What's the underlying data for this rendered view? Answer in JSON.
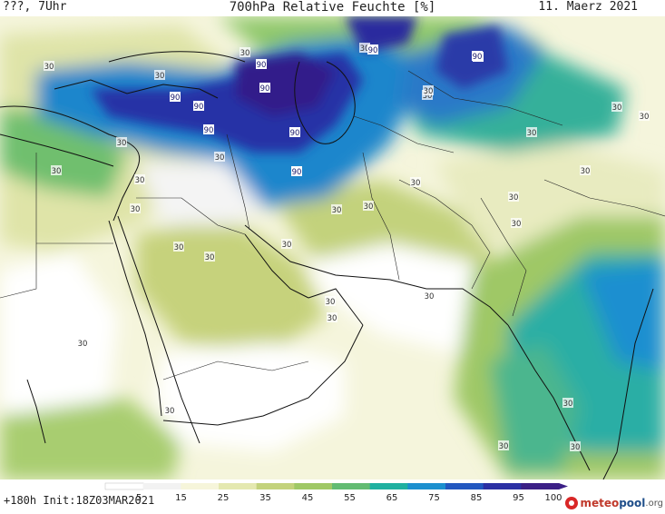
{
  "header": {
    "left": "???, 7Uhr",
    "title": "700hPa Relative Feuchte [%]",
    "date": "11. Maerz 2021"
  },
  "footer": {
    "run_info": "+180h  Init:18Z03MAR2021"
  },
  "logo": {
    "part1": "meteo",
    "part2": "pool",
    "part3": ".org"
  },
  "legend": {
    "ticks": [
      "5",
      "15",
      "25",
      "35",
      "45",
      "55",
      "65",
      "75",
      "85",
      "95",
      "100"
    ],
    "colors": [
      "#ffffff",
      "#f2f2f2",
      "#f6f5da",
      "#e4e8b0",
      "#c3d27c",
      "#9fc866",
      "#62bb73",
      "#1fb0a1",
      "#1b8fcf",
      "#2257c0",
      "#2b2fa4",
      "#3b1f86"
    ]
  },
  "map": {
    "contour_labels": [
      "30",
      "30",
      "30",
      "30",
      "30",
      "30",
      "30",
      "30",
      "30",
      "30",
      "30",
      "30",
      "30",
      "30",
      "30",
      "30",
      "30",
      "30",
      "30",
      "30",
      "30",
      "30",
      "30",
      "30",
      "30",
      "30",
      "30",
      "30",
      "30",
      "30",
      "30",
      "90",
      "90",
      "90",
      "90",
      "90",
      "90",
      "90",
      "90",
      "90",
      "90"
    ]
  }
}
